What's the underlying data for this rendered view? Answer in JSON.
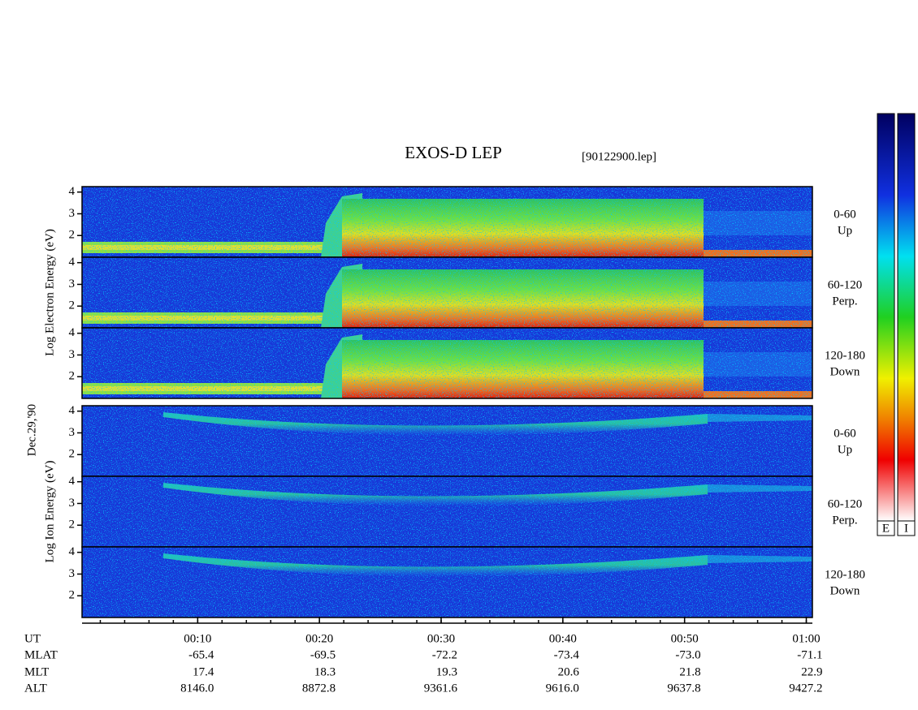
{
  "chart_data": {
    "type": "spectrogram",
    "title": "EXOS-D LEP",
    "subtitle": "[90122900.lep]",
    "date_label": "Dec.29,'90",
    "xlim": [
      0.5,
      60.5
    ],
    "xticks": [
      {
        "value": 10,
        "label": "00:10"
      },
      {
        "value": 20,
        "label": "00:20"
      },
      {
        "value": 30,
        "label": "00:30"
      },
      {
        "value": 40,
        "label": "00:40"
      },
      {
        "value": 50,
        "label": "00:50"
      },
      {
        "value": 60,
        "label": "01:00"
      }
    ],
    "xminor_step": 2,
    "ylim": [
      1,
      4.25
    ],
    "yticks": [
      2,
      3,
      4
    ],
    "groups": [
      {
        "ylabel": "Log Electron Energy (eV)",
        "panels": [
          {
            "label": [
              "0-60",
              "Up"
            ]
          },
          {
            "label": [
              "60-120",
              "Perp."
            ]
          },
          {
            "label": [
              "120-180",
              "Down"
            ]
          }
        ]
      },
      {
        "ylabel": "Log Ion Energy (eV)",
        "panels": [
          {
            "label": [
              "0-60",
              "Up"
            ]
          },
          {
            "label": [
              "60-120",
              "Perp."
            ]
          },
          {
            "label": [
              "120-180",
              "Down"
            ]
          }
        ]
      }
    ],
    "ephemeris": {
      "row_labels": [
        "UT",
        "MLAT",
        "MLT",
        "ALT"
      ],
      "rows": [
        [
          "-65.4",
          "-69.5",
          "-72.2",
          "-73.4",
          "-73.0",
          "-71.1"
        ],
        [
          "17.4",
          "18.3",
          "19.3",
          "20.6",
          "21.8",
          "22.9"
        ],
        [
          "8146.0",
          "8872.8",
          "9361.6",
          "9616.0",
          "9637.8",
          "9427.2"
        ]
      ]
    },
    "colorbar_labels": [
      "E",
      "I"
    ]
  }
}
